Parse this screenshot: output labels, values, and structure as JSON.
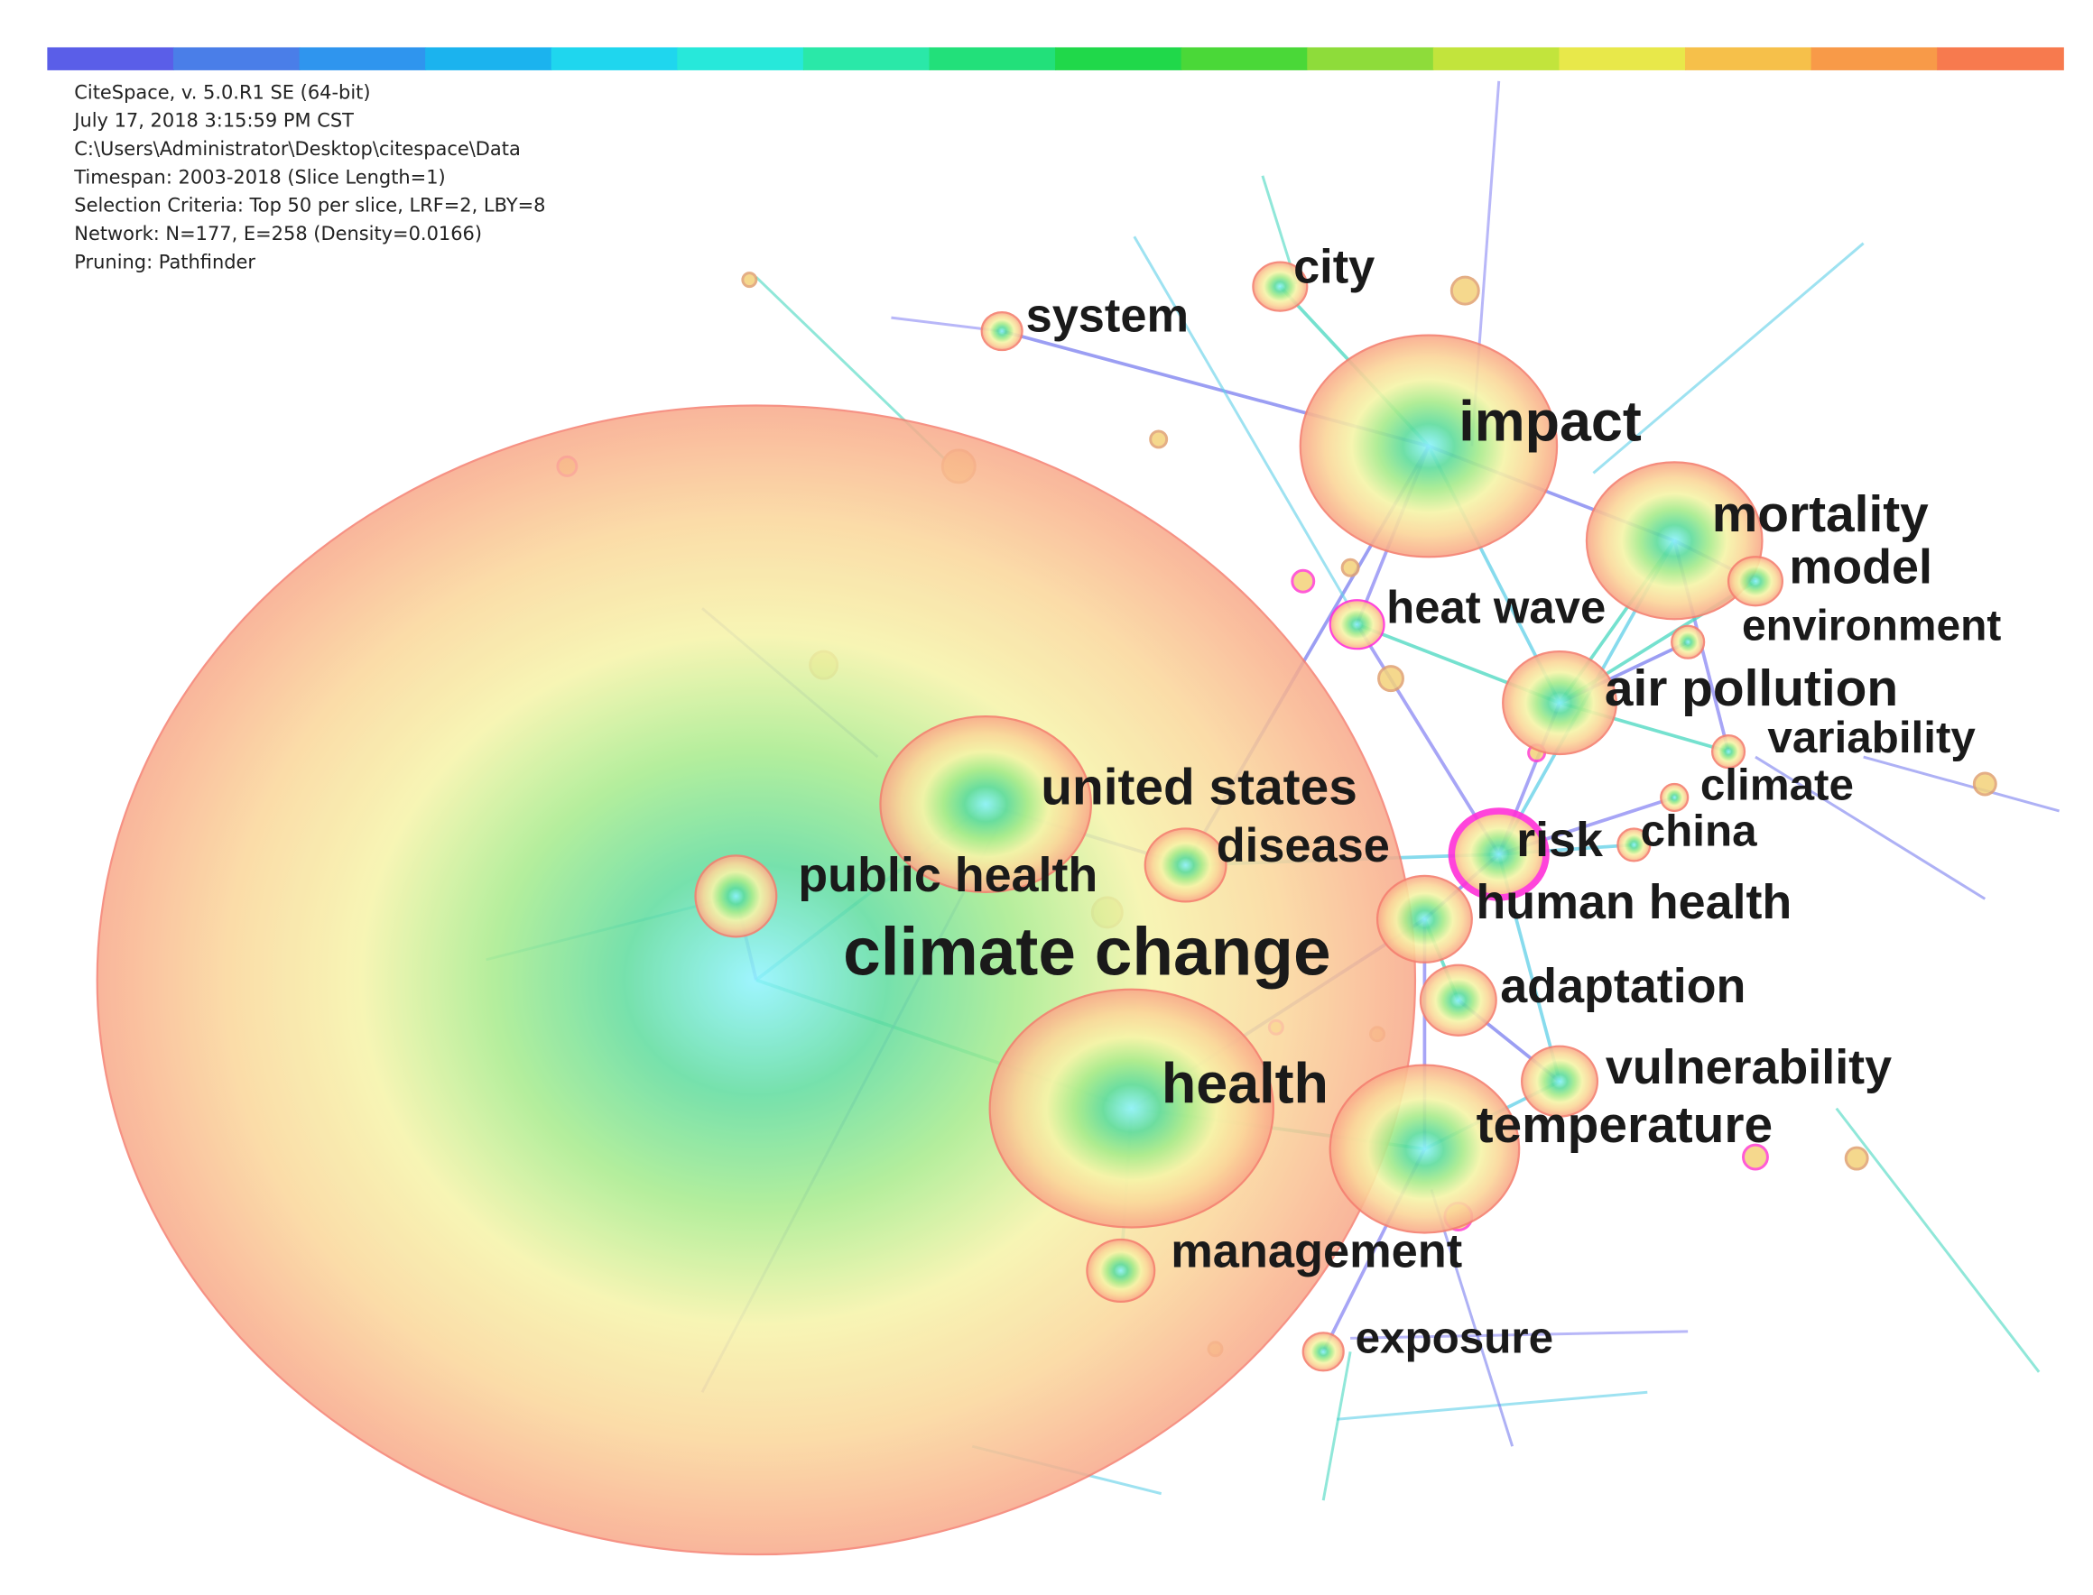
{
  "header": {
    "lines": [
      "CiteSpace, v. 5.0.R1 SE (64-bit)",
      "July 17, 2018 3:15:59 PM CST",
      "C:\\Users\\Administrator\\Desktop\\citespace\\Data",
      "Timespan: 2003-2018 (Slice Length=1)",
      "Selection Criteria: Top 50 per slice, LRF=2, LBY=8",
      "Network: N=177, E=258 (Density=0.0166)",
      "Pruning: Pathfinder"
    ]
  },
  "nodes": [
    {
      "label": "climate change"
    },
    {
      "label": "health"
    },
    {
      "label": "impact"
    },
    {
      "label": "mortality"
    },
    {
      "label": "united states"
    },
    {
      "label": "temperature"
    },
    {
      "label": "air pollution"
    },
    {
      "label": "public health"
    },
    {
      "label": "disease"
    },
    {
      "label": "risk"
    },
    {
      "label": "human health"
    },
    {
      "label": "adaptation"
    },
    {
      "label": "vulnerability"
    },
    {
      "label": "management"
    },
    {
      "label": "exposure"
    },
    {
      "label": "heat wave"
    },
    {
      "label": "model"
    },
    {
      "label": "environment"
    },
    {
      "label": "variability"
    },
    {
      "label": "climate"
    },
    {
      "label": "china"
    },
    {
      "label": "city"
    },
    {
      "label": "system"
    }
  ]
}
